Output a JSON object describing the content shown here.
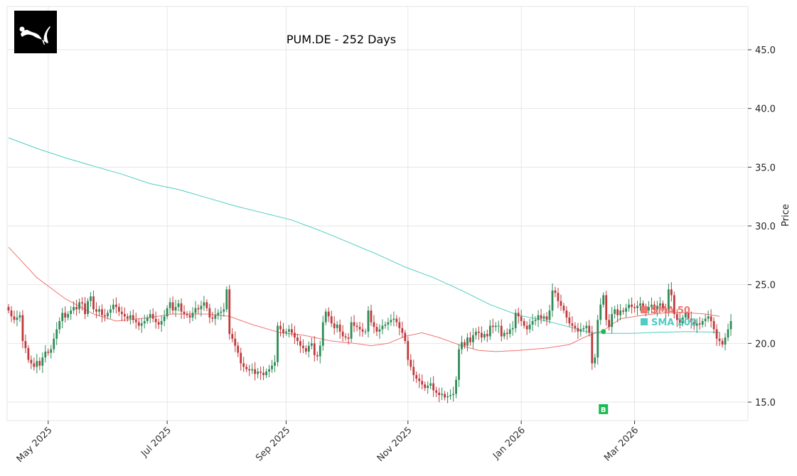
{
  "chart_data": {
    "type": "candlestick",
    "title": "PUM.DE - 252 Days",
    "xlabel": "",
    "ylabel": "Price",
    "ylim": [
      13.4,
      48.6
    ],
    "yticks": [
      15.0,
      20.0,
      25.0,
      30.0,
      35.0,
      40.0,
      45.0
    ],
    "ytick_labels": [
      "15.0",
      "20.0",
      "25.0",
      "30.0",
      "35.0",
      "40.0",
      "45.0"
    ],
    "xtick_labels": [
      "May 2025",
      "Jul 2025",
      "Sep 2025",
      "Nov 2025",
      "Jan 2026",
      "Mar 2026"
    ],
    "xtick_index": [
      14,
      56,
      98,
      141,
      181,
      221
    ],
    "grid": true,
    "colors": {
      "up": "#2e8b57",
      "down": "#c0393b",
      "sma50": "#f07470",
      "sma200": "#4ecdc4",
      "buy_marker": "#1db954",
      "grid": "#e6e6e6",
      "logo_bg": "#000000"
    },
    "legend": [
      {
        "label": "SMA 50",
        "color": "#f07470"
      },
      {
        "label": "SMA 200",
        "color": "#4ecdc4"
      }
    ],
    "annotations": [
      {
        "type": "buy_signal",
        "label": "B",
        "index": 210,
        "price": 14.4
      },
      {
        "type": "crossover_dot",
        "index": 210,
        "price": 21.0
      }
    ],
    "closes": [
      22.8,
      22.3,
      22.0,
      22.2,
      22.4,
      20.2,
      19.6,
      18.6,
      18.3,
      18.0,
      18.5,
      18.1,
      18.8,
      19.3,
      19.2,
      19.5,
      20.4,
      21.2,
      21.9,
      22.6,
      22.2,
      22.5,
      22.8,
      23.1,
      22.9,
      23.5,
      23.4,
      22.5,
      23.6,
      24.0,
      22.9,
      22.7,
      22.9,
      22.4,
      22.3,
      22.6,
      22.9,
      23.3,
      23.1,
      22.7,
      22.5,
      22.3,
      22.1,
      22.4,
      22.0,
      21.8,
      21.5,
      21.7,
      21.9,
      22.2,
      22.5,
      22.1,
      21.8,
      21.6,
      21.9,
      22.3,
      23.0,
      23.5,
      22.8,
      23.1,
      23.4,
      22.7,
      22.5,
      22.4,
      22.2,
      22.6,
      23.0,
      22.9,
      23.2,
      23.5,
      23.0,
      22.2,
      22.1,
      22.4,
      22.6,
      22.7,
      22.9,
      24.6,
      20.8,
      20.4,
      19.8,
      19.2,
      18.3,
      18.0,
      17.8,
      17.7,
      17.8,
      17.4,
      17.6,
      17.5,
      17.3,
      17.6,
      17.8,
      18.1,
      18.4,
      21.5,
      21.2,
      20.9,
      21.0,
      21.2,
      20.9,
      20.5,
      20.2,
      19.8,
      19.6,
      19.3,
      19.8,
      20.0,
      19.0,
      18.9,
      19.8,
      21.8,
      22.7,
      22.3,
      21.7,
      21.3,
      21.6,
      21.0,
      20.6,
      20.5,
      20.4,
      21.8,
      21.5,
      21.4,
      21.2,
      21.0,
      21.0,
      22.8,
      21.8,
      21.4,
      21.0,
      21.2,
      21.5,
      21.6,
      21.8,
      22.0,
      22.1,
      21.8,
      21.3,
      20.9,
      20.2,
      18.6,
      18.0,
      17.3,
      17.0,
      16.8,
      16.5,
      16.2,
      16.4,
      16.6,
      16.0,
      15.8,
      15.6,
      15.7,
      15.4,
      15.5,
      15.6,
      15.7,
      16.9,
      19.5,
      20.1,
      19.8,
      20.5,
      20.1,
      20.7,
      21.0,
      20.9,
      20.5,
      20.8,
      20.6,
      21.5,
      21.4,
      21.5,
      21.5,
      20.6,
      20.9,
      20.8,
      21.2,
      21.3,
      22.6,
      22.3,
      21.9,
      21.5,
      21.2,
      21.6,
      21.9,
      22.0,
      22.4,
      22.1,
      22.3,
      22.0,
      22.8,
      24.5,
      24.3,
      23.6,
      23.2,
      22.8,
      22.2,
      21.7,
      21.5,
      21.3,
      21.0,
      21.2,
      21.3,
      21.5,
      20.9,
      18.3,
      18.8,
      22.0,
      23.3,
      24.1,
      22.0,
      21.4,
      22.5,
      22.9,
      22.4,
      22.8,
      22.7,
      23.0,
      23.3,
      23.1,
      23.0,
      23.2,
      23.4,
      23.0,
      22.8,
      23.1,
      23.3,
      22.9,
      23.2,
      23.4,
      23.0,
      22.6,
      24.6,
      24.1,
      22.5,
      22.0,
      21.7,
      22.2,
      22.6,
      22.1,
      21.8,
      21.5,
      21.7,
      21.6,
      21.9,
      22.1,
      22.3,
      21.9,
      21.2,
      20.4,
      20.2,
      19.9,
      20.5,
      21.2,
      21.9
    ],
    "sma50_points": [
      [
        0,
        28.2
      ],
      [
        10,
        25.6
      ],
      [
        20,
        23.8
      ],
      [
        30,
        22.5
      ],
      [
        38,
        21.9
      ],
      [
        50,
        22.2
      ],
      [
        58,
        22.5
      ],
      [
        70,
        22.5
      ],
      [
        78,
        22.3
      ],
      [
        86,
        21.6
      ],
      [
        96,
        20.9
      ],
      [
        104,
        20.7
      ],
      [
        114,
        20.2
      ],
      [
        122,
        20.0
      ],
      [
        128,
        19.8
      ],
      [
        134,
        20.0
      ],
      [
        140,
        20.6
      ],
      [
        146,
        20.9
      ],
      [
        152,
        20.5
      ],
      [
        160,
        19.8
      ],
      [
        166,
        19.4
      ],
      [
        172,
        19.3
      ],
      [
        180,
        19.4
      ],
      [
        190,
        19.6
      ],
      [
        198,
        19.9
      ],
      [
        204,
        20.6
      ],
      [
        210,
        21.1
      ],
      [
        216,
        22.1
      ],
      [
        224,
        22.4
      ],
      [
        232,
        22.6
      ],
      [
        240,
        22.6
      ],
      [
        246,
        22.5
      ],
      [
        251,
        22.3
      ]
    ],
    "sma200_points": [
      [
        0,
        37.5
      ],
      [
        10,
        36.6
      ],
      [
        20,
        35.8
      ],
      [
        30,
        35.1
      ],
      [
        40,
        34.4
      ],
      [
        50,
        33.6
      ],
      [
        60,
        33.1
      ],
      [
        70,
        32.4
      ],
      [
        80,
        31.7
      ],
      [
        90,
        31.1
      ],
      [
        100,
        30.5
      ],
      [
        110,
        29.6
      ],
      [
        120,
        28.6
      ],
      [
        130,
        27.6
      ],
      [
        140,
        26.5
      ],
      [
        150,
        25.6
      ],
      [
        160,
        24.5
      ],
      [
        170,
        23.3
      ],
      [
        180,
        22.4
      ],
      [
        190,
        21.9
      ],
      [
        198,
        21.4
      ],
      [
        204,
        21.0
      ],
      [
        210,
        20.85
      ],
      [
        220,
        20.85
      ],
      [
        230,
        20.95
      ],
      [
        240,
        21.0
      ],
      [
        251,
        20.95
      ]
    ]
  },
  "header": {
    "title": "PUM.DE - 252 Days"
  },
  "logo": {
    "name": "puma-logo"
  },
  "axis": {
    "ylabel": "Price"
  }
}
